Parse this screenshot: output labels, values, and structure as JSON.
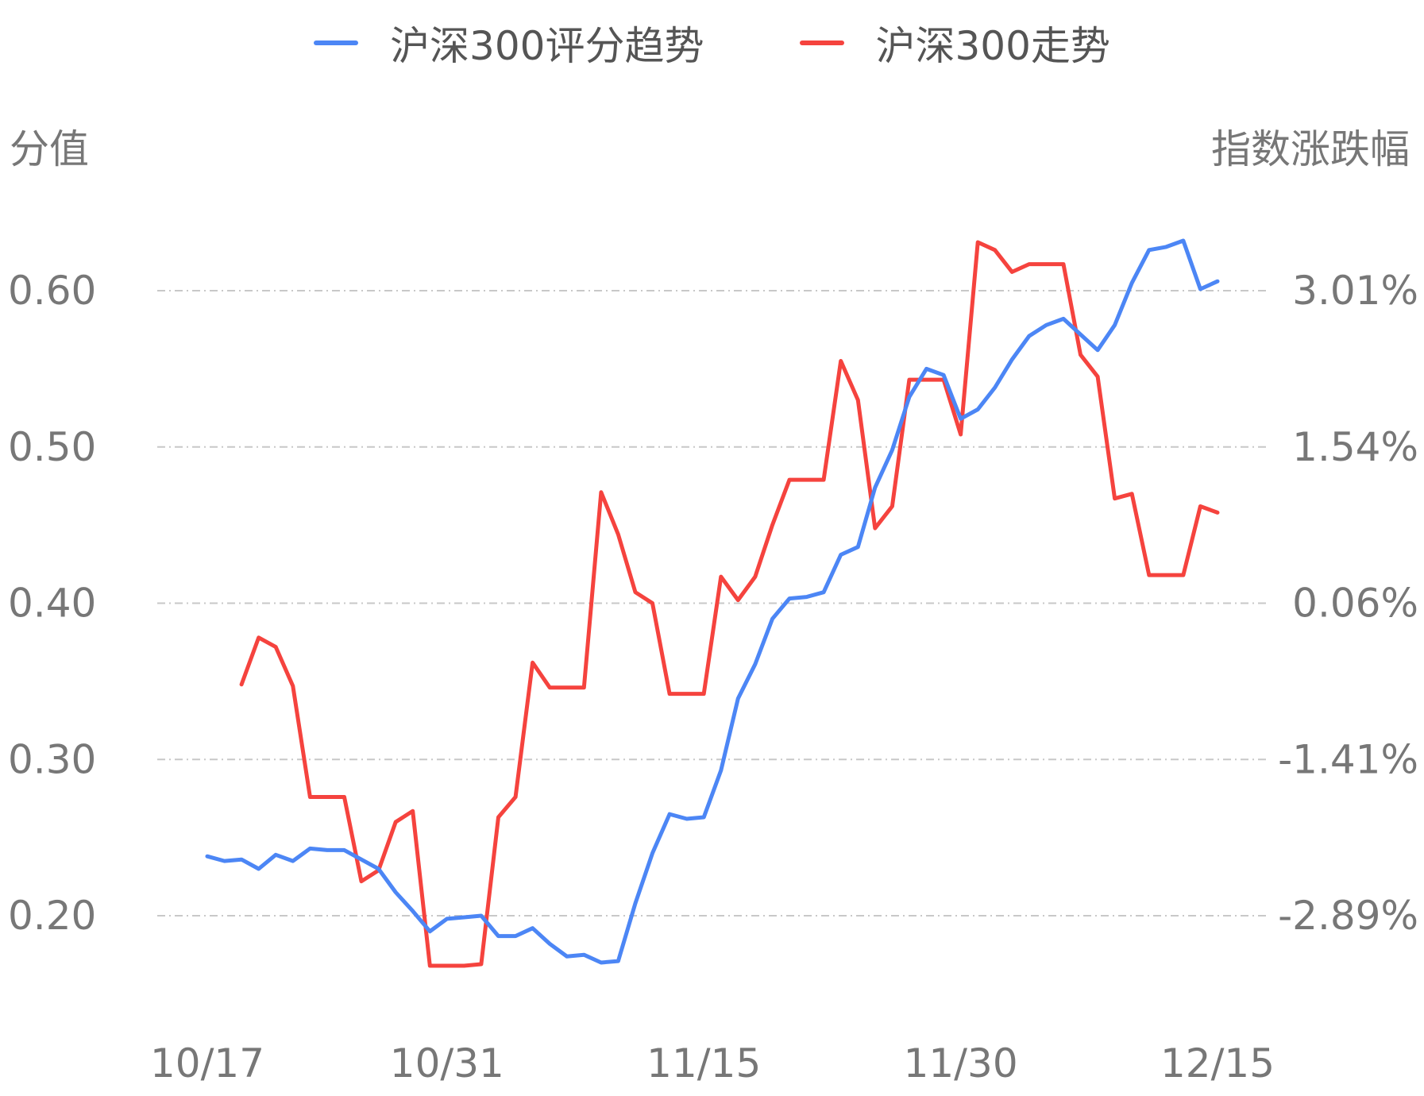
{
  "chart_data": {
    "type": "line",
    "legend": {
      "position": "top-center",
      "items": [
        {
          "label": "沪深300评分趋势",
          "color": "#4c86f5"
        },
        {
          "label": "沪深300走势",
          "color": "#f5433e"
        }
      ]
    },
    "left_axis": {
      "title": "分值",
      "ticks": [
        "0.60",
        "0.50",
        "0.40",
        "0.30",
        "0.20"
      ],
      "tick_values": [
        0.6,
        0.5,
        0.4,
        0.3,
        0.2
      ],
      "range": [
        0.14,
        0.68
      ]
    },
    "right_axis": {
      "title": "指数涨跌幅",
      "ticks": [
        "3.01%",
        "1.54%",
        "0.06%",
        "-1.41%",
        "-2.89%"
      ],
      "tick_values": [
        3.01,
        1.54,
        0.06,
        -1.41,
        -2.89
      ]
    },
    "x_ticks": [
      "10/17",
      "10/31",
      "11/15",
      "11/30",
      "12/15"
    ],
    "x_tick_indices": [
      0,
      14,
      29,
      44,
      59
    ],
    "grid": "horizontal dashed",
    "series": [
      {
        "name": "沪深300评分趋势",
        "axis": "left",
        "color": "#4c86f5",
        "start_index": 0,
        "values": [
          0.238,
          0.235,
          0.236,
          0.23,
          0.239,
          0.235,
          0.243,
          0.242,
          0.242,
          0.236,
          0.23,
          0.215,
          0.203,
          0.19,
          0.198,
          0.199,
          0.2,
          0.187,
          0.187,
          0.192,
          0.182,
          0.174,
          0.175,
          0.17,
          0.171,
          0.208,
          0.24,
          0.265,
          0.262,
          0.263,
          0.293,
          0.339,
          0.361,
          0.39,
          0.403,
          0.404,
          0.407,
          0.431,
          0.436,
          0.474,
          0.498,
          0.532,
          0.55,
          0.546,
          0.518,
          0.524,
          0.538,
          0.556,
          0.571,
          0.578,
          0.582,
          0.572,
          0.562,
          0.578,
          0.605,
          0.626,
          0.628,
          0.632,
          0.601,
          0.606
        ]
      },
      {
        "name": "沪深300走势",
        "axis": "left",
        "color": "#f5433e",
        "start_index": 2,
        "values": [
          0.348,
          0.378,
          0.372,
          0.347,
          0.276,
          0.276,
          0.276,
          0.222,
          0.229,
          0.26,
          0.267,
          0.168,
          0.168,
          0.168,
          0.169,
          0.263,
          0.276,
          0.362,
          0.346,
          0.346,
          0.346,
          0.471,
          0.444,
          0.407,
          0.4,
          0.342,
          0.342,
          0.342,
          0.417,
          0.402,
          0.417,
          0.45,
          0.479,
          0.479,
          0.479,
          0.555,
          0.53,
          0.448,
          0.462,
          0.543,
          0.543,
          0.543,
          0.508,
          0.631,
          0.626,
          0.612,
          0.617,
          0.617,
          0.617,
          0.559,
          0.545,
          0.467,
          0.47,
          0.418,
          0.418,
          0.418,
          0.462,
          0.458
        ]
      }
    ]
  }
}
